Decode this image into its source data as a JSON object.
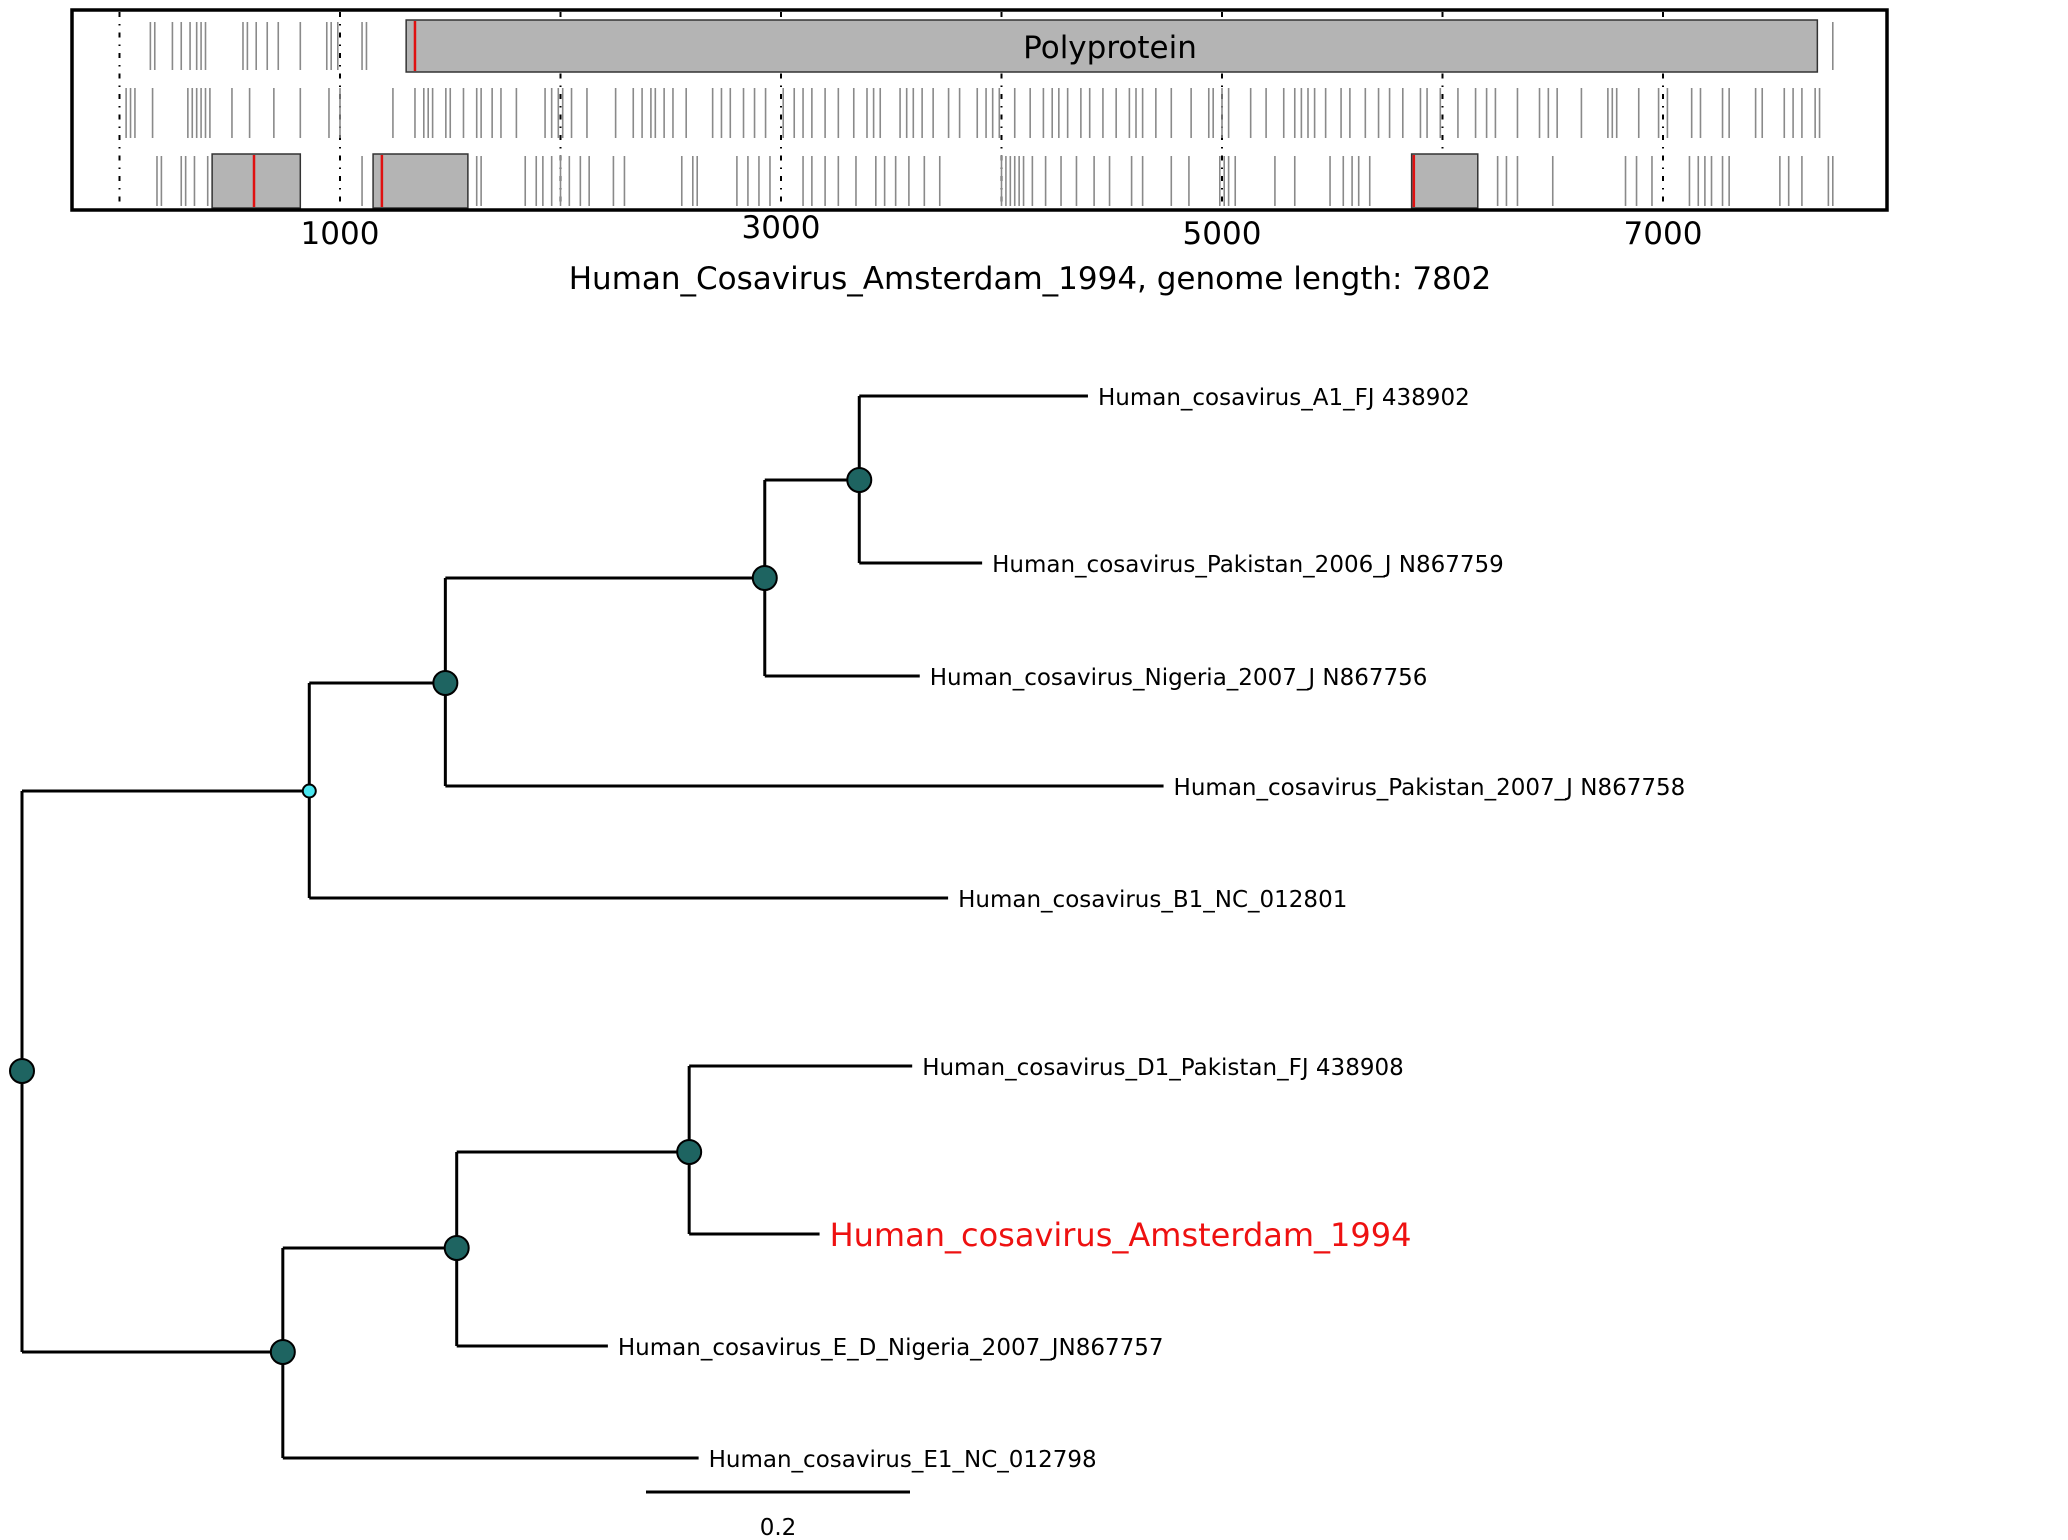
{
  "genome_map": {
    "title": "Human_Cosavirus_Amsterdam_1994, genome length: 7802",
    "genome_length": 7802,
    "orf_label": "Polyprotein",
    "x_ticks": [
      1000,
      3000,
      5000,
      7000
    ],
    "frames": [
      {
        "orfs": [
          [
            1300,
            7700
          ]
        ],
        "stop_codons": [
          1120,
          1100,
          990,
          960,
          940,
          820,
          720,
          670,
          620,
          580,
          560,
          390,
          370,
          350,
          320,
          280,
          240,
          160,
          140,
          7770
        ],
        "start_codons": [
          1340
        ]
      },
      {
        "orfs": [],
        "stop_codons": [
          30,
          50,
          70,
          150,
          310,
          330,
          350,
          370,
          390,
          410,
          510,
          590,
          700,
          820,
          950,
          1000,
          1240,
          1340,
          1380,
          1400,
          1420,
          1480,
          1500,
          1560,
          1620,
          1640,
          1690,
          1730,
          1800,
          1930,
          1960,
          1990,
          2010,
          2050,
          2120,
          2250,
          2330,
          2370,
          2410,
          2430,
          2470,
          2510,
          2570,
          2690,
          2730,
          2770,
          2830,
          2880,
          2930,
          3010,
          3060,
          3100,
          3140,
          3200,
          3260,
          3330,
          3390,
          3420,
          3450,
          3540,
          3570,
          3600,
          3640,
          3690,
          3760,
          3810,
          3890,
          3930,
          3960,
          3990,
          4060,
          4130,
          4190,
          4230,
          4260,
          4300,
          4360,
          4400,
          4460,
          4520,
          4580,
          4610,
          4640,
          4700,
          4770,
          4860,
          4940,
          4960,
          5000,
          5030,
          5130,
          5200,
          5280,
          5330,
          5360,
          5390,
          5420,
          5470,
          5540,
          5580,
          5650,
          5710,
          5760,
          5820,
          5900,
          5930,
          5990,
          6070,
          6150,
          6200,
          6240,
          6340,
          6440,
          6480,
          6520,
          6630,
          6750,
          6770,
          6790,
          6890,
          6980,
          7020,
          7130,
          7170,
          7270,
          7300,
          7420,
          7450,
          7550,
          7590,
          7630,
          7690,
          7710
        ]
      },
      {
        "orfs": [
          [
            420,
            820
          ],
          [
            1150,
            1580
          ],
          [
            5860,
            6160
          ]
        ],
        "stop_codons": [
          170,
          190,
          280,
          300,
          340,
          400,
          1100,
          1620,
          1640,
          1840,
          1890,
          1920,
          1960,
          2000,
          2040,
          2090,
          2130,
          2240,
          2290,
          2550,
          2600,
          2620,
          2800,
          2850,
          2900,
          2950,
          3100,
          3140,
          3200,
          3260,
          3340,
          3430,
          3470,
          3520,
          3580,
          3650,
          3720,
          4000,
          4020,
          4040,
          4060,
          4080,
          4100,
          4140,
          4200,
          4270,
          4340,
          4420,
          4490,
          4590,
          4640,
          4770,
          4850,
          4990,
          5010,
          5030,
          5060,
          5240,
          5330,
          5490,
          5550,
          5590,
          5620,
          5670,
          6250,
          6290,
          6340,
          6500,
          6830,
          6880,
          6950,
          7120,
          7160,
          7190,
          7220,
          7270,
          7300,
          7530,
          7570,
          7630,
          7750,
          7770
        ],
        "start_codons": [
          610,
          1190,
          5870
        ]
      }
    ]
  },
  "tree": {
    "leaves": [
      "Human_cosavirus_A1_FJ 438902",
      "Human_cosavirus_Pakistan_2006_J N867759",
      "Human_cosavirus_Nigeria_2007_J N867756",
      "Human_cosavirus_Pakistan_2007_J N867758",
      "Human_cosavirus_B1_NC_012801",
      "Human_cosavirus_D1_Pakistan_FJ 438908",
      "Human_cosavirus_Amsterdam_1994",
      "Human_cosavirus_E_D_Nigeria_2007_JN867757",
      "Human_cosavirus_E1_NC_012798"
    ],
    "highlighted_leaf": "Human_cosavirus_Amsterdam_1994",
    "highlight_color": "#ee1111",
    "node_color": "#1e6461",
    "weak_node_color": "#49e6ef",
    "scale_bar_label": "0.2",
    "scale_bar_value": 0.2,
    "newick": "((((A1:0.25,Pak2006:0.46):0.25,Nig2007:0.6):0.84,Pak2007:1.78):0.71,B1:1.68,(((D1:0.6,Amsterdam:0.34):0.61,ED:0.37):0.46,E1:1.1):0.68);"
  }
}
